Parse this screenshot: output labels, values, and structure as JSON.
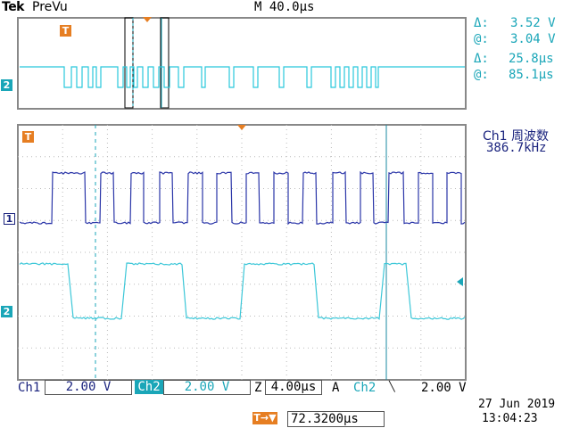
{
  "header": {
    "brand": "Tek",
    "mode": "PreVu",
    "timebase": "M 40.0µs"
  },
  "cursors": {
    "v_delta": "3.52 V",
    "v_at": "3.04 V",
    "t_delta": "25.8µs",
    "t_at": "85.1µs",
    "delta_symbol": "Δ:",
    "at_symbol": "@:"
  },
  "measurement": {
    "label": "Ch1 周波数",
    "value": "386.7kHz"
  },
  "markers": {
    "trigger": "T",
    "ch1": "1",
    "ch2": "2",
    "preview_ch": "2"
  },
  "bottom": {
    "ch1_label": "Ch1",
    "ch1_scale": "2.00 V",
    "ch2_label": "Ch2",
    "ch2_scale": "2.00 V",
    "z_label": "Z",
    "zoom_time": "4.00µs",
    "trig_label": "A",
    "trig_source": "Ch2",
    "trig_slope": "╲",
    "trig_level": "2.00 V",
    "position_label": "T→▼",
    "position": "72.3200µs",
    "date": "27 Jun  2019",
    "time": "13:04:23"
  },
  "colors": {
    "ch1": "#1a237e",
    "ch2": "#1aa6b8",
    "trigger": "#e67e22",
    "grid": "#999999"
  }
}
